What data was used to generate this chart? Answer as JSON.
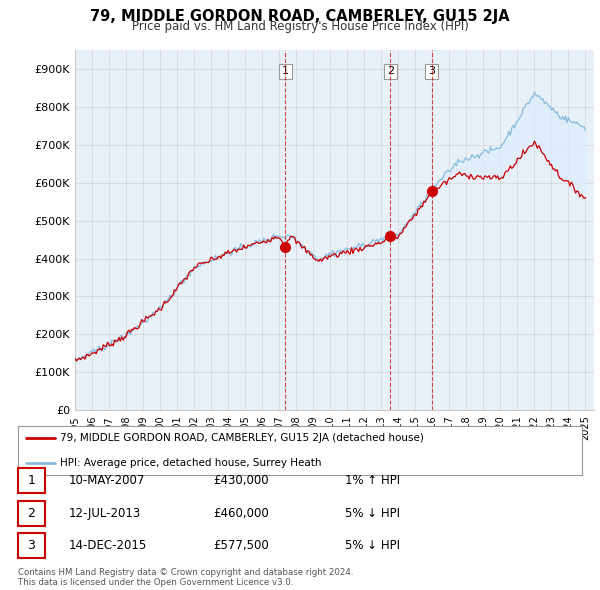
{
  "title": "79, MIDDLE GORDON ROAD, CAMBERLEY, GU15 2JA",
  "subtitle": "Price paid vs. HM Land Registry's House Price Index (HPI)",
  "ylim": [
    0,
    950000
  ],
  "yticks": [
    0,
    100000,
    200000,
    300000,
    400000,
    500000,
    600000,
    700000,
    800000,
    900000
  ],
  "ytick_labels": [
    "£0",
    "£100K",
    "£200K",
    "£300K",
    "£400K",
    "£500K",
    "£600K",
    "£700K",
    "£800K",
    "£900K"
  ],
  "sale_prices": [
    430000,
    460000,
    577500
  ],
  "sale_year_nums": [
    2007.36,
    2013.53,
    2015.96
  ],
  "sale_labels": [
    "1",
    "2",
    "3"
  ],
  "line_color_red": "#cc0000",
  "line_color_blue": "#88bbdd",
  "dashed_color": "#cc0000",
  "fill_color": "#ddeeff",
  "background_color": "#ffffff",
  "chart_bg_color": "#e8f0f8",
  "grid_color": "#cccccc",
  "legend_entries": [
    "79, MIDDLE GORDON ROAD, CAMBERLEY, GU15 2JA (detached house)",
    "HPI: Average price, detached house, Surrey Heath"
  ],
  "table_rows": [
    [
      "1",
      "10-MAY-2007",
      "£430,000",
      "1% ↑ HPI"
    ],
    [
      "2",
      "12-JUL-2013",
      "£460,000",
      "5% ↓ HPI"
    ],
    [
      "3",
      "14-DEC-2015",
      "£577,500",
      "5% ↓ HPI"
    ]
  ],
  "footer": "Contains HM Land Registry data © Crown copyright and database right 2024.\nThis data is licensed under the Open Government Licence v3.0.",
  "xlim_start": 1995.0,
  "xlim_end": 2025.5,
  "xtick_years": [
    1995,
    1996,
    1997,
    1998,
    1999,
    2000,
    2001,
    2002,
    2003,
    2004,
    2005,
    2006,
    2007,
    2008,
    2009,
    2010,
    2011,
    2012,
    2013,
    2014,
    2015,
    2016,
    2017,
    2018,
    2019,
    2020,
    2021,
    2022,
    2023,
    2024,
    2025
  ]
}
